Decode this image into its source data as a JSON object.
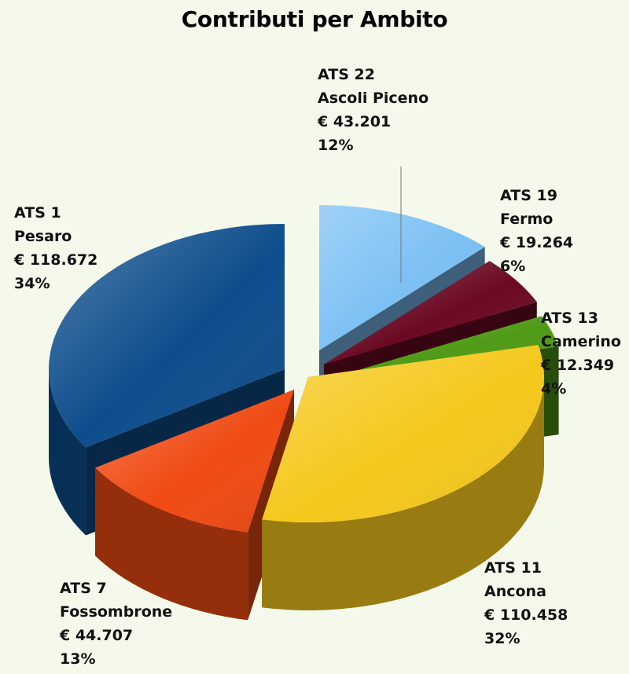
{
  "chart_data": {
    "type": "pie",
    "title": "Contributi per Ambito",
    "slices": [
      {
        "name": "ATS 22",
        "place": "Ascoli Piceno",
        "amount": "€ 43.201",
        "value": 43201,
        "percent": "12%",
        "color": "#7cc0f4"
      },
      {
        "name": "ATS 19",
        "place": "Fermo",
        "amount": "€ 19.264",
        "value": 19264,
        "percent": "6%",
        "color": "#6b0a22"
      },
      {
        "name": "ATS 13",
        "place": "Camerino",
        "amount": "€ 12.349",
        "value": 12349,
        "percent": "4%",
        "color": "#4f9a16"
      },
      {
        "name": "ATS 11",
        "place": "Ancona",
        "amount": "€ 110.458",
        "value": 110458,
        "percent": "32%",
        "color": "#f5c81c"
      },
      {
        "name": "ATS 7",
        "place": "Fossombrone",
        "amount": "€ 44.707",
        "value": 44707,
        "percent": "13%",
        "color": "#f04a12"
      },
      {
        "name": "ATS 1",
        "place": "Pesaro",
        "amount": "€ 118.672",
        "value": 118672,
        "percent": "34%",
        "color": "#0d4d8c"
      }
    ]
  }
}
